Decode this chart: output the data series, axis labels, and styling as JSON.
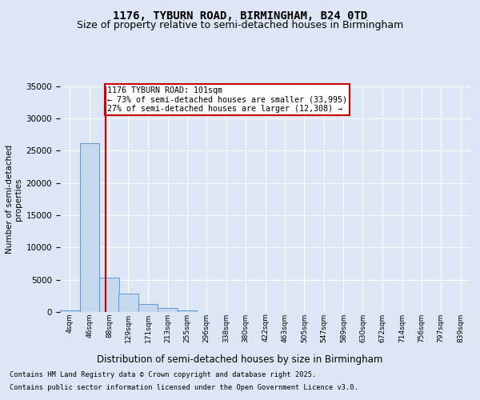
{
  "title": "1176, TYBURN ROAD, BIRMINGHAM, B24 0TD",
  "subtitle": "Size of property relative to semi-detached houses in Birmingham",
  "xlabel": "Distribution of semi-detached houses by size in Birmingham",
  "ylabel": "Number of semi-detached\nproperties",
  "footer1": "Contains HM Land Registry data © Crown copyright and database right 2025.",
  "footer2": "Contains public sector information licensed under the Open Government Licence v3.0.",
  "bin_labels": [
    "4sqm",
    "46sqm",
    "88sqm",
    "129sqm",
    "171sqm",
    "213sqm",
    "255sqm",
    "296sqm",
    "338sqm",
    "380sqm",
    "422sqm",
    "463sqm",
    "505sqm",
    "547sqm",
    "589sqm",
    "630sqm",
    "672sqm",
    "714sqm",
    "756sqm",
    "797sqm",
    "839sqm"
  ],
  "bin_edges": [
    4,
    46,
    88,
    129,
    171,
    213,
    255,
    296,
    338,
    380,
    422,
    463,
    505,
    547,
    589,
    630,
    672,
    714,
    756,
    797,
    839
  ],
  "bar_heights": [
    280,
    26200,
    5300,
    2800,
    1300,
    600,
    280,
    0,
    0,
    0,
    0,
    0,
    0,
    0,
    0,
    0,
    0,
    0,
    0,
    0
  ],
  "bar_color": "#c5d8f0",
  "bar_edgecolor": "#5b9bd5",
  "property_size": 101,
  "vline_color": "#cc0000",
  "annotation_text": "1176 TYBURN ROAD: 101sqm\n← 73% of semi-detached houses are smaller (33,995)\n27% of semi-detached houses are larger (12,308) →",
  "annotation_box_color": "#ffffff",
  "annotation_box_edgecolor": "#cc0000",
  "ylim": [
    0,
    35000
  ],
  "yticks": [
    0,
    5000,
    10000,
    15000,
    20000,
    25000,
    30000,
    35000
  ],
  "background_color": "#dce6f5",
  "axes_background": "#dce6f5",
  "grid_color": "#ffffff",
  "title_fontsize": 10,
  "subtitle_fontsize": 9
}
